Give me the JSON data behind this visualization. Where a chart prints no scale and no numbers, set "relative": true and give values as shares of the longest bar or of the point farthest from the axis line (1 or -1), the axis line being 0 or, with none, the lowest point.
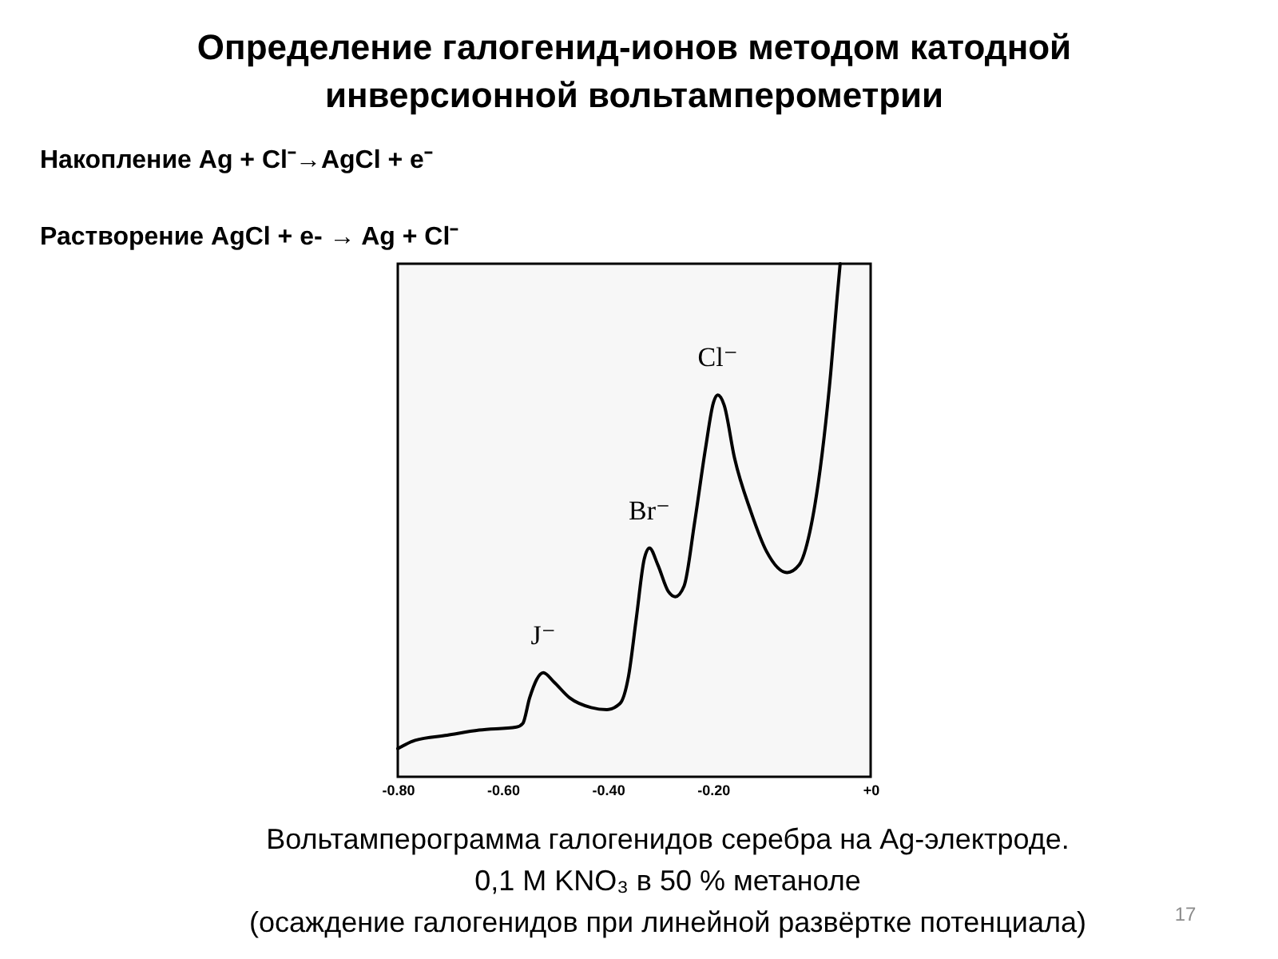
{
  "chart_data": {
    "type": "line",
    "title": "Определение галогенид-ионов методом катодной\nинверсионной вольтамперометрии",
    "x": [
      -0.8,
      -0.767,
      -0.706,
      -0.645,
      -0.574,
      -0.562,
      -0.549,
      -0.523,
      -0.503,
      -0.473,
      -0.432,
      -0.402,
      -0.377,
      -0.361,
      -0.346,
      -0.331,
      -0.321,
      -0.305,
      -0.285,
      -0.272,
      -0.255,
      -0.235,
      -0.214,
      -0.199,
      -0.191,
      -0.179,
      -0.159,
      -0.128,
      -0.098,
      -0.059,
      -0.036,
      -0.016,
      0.004,
      0.024,
      0.036,
      0.042
    ],
    "series": [
      {
        "color": "#000000",
        "values": [
          0.055,
          0.071,
          0.081,
          0.091,
          0.097,
          0.104,
          0.154,
          0.203,
          0.185,
          0.154,
          0.135,
          0.131,
          0.143,
          0.195,
          0.309,
          0.424,
          0.446,
          0.413,
          0.361,
          0.351,
          0.372,
          0.496,
          0.642,
          0.73,
          0.744,
          0.725,
          0.621,
          0.517,
          0.439,
          0.398,
          0.413,
          0.476,
          0.6,
          0.787,
          0.932,
          1.0
        ]
      }
    ],
    "relative": true,
    "xlim": [
      -0.8,
      0.1
    ],
    "xticks": [
      {
        "value": -0.8,
        "label": "-0.80"
      },
      {
        "value": -0.6,
        "label": "-0.60"
      },
      {
        "value": -0.4,
        "label": "-0.40"
      },
      {
        "value": -0.2,
        "label": "-0.20"
      },
      {
        "value": 0.1,
        "label": "+0"
      }
    ],
    "line_style": "solid",
    "annotations": [
      "Накопление  Ag + Cl⁻→AgCl + e⁻",
      "Растворение AgCl + e- → Ag + Cl⁻",
      "Вольтамперограмма галогенидов серебра на Ag-электроде.\n0,1 M KNO₃  в 50 % метаноле\n(осаждение галогенидов при линейной развёртке потенциала)",
      "17",
      {
        "text": "J⁻",
        "x": -0.523,
        "y": 0.203
      },
      {
        "text": "Br⁻",
        "x": -0.321,
        "y": 0.446
      },
      {
        "text": "Cl⁻",
        "x": -0.191,
        "y": 0.744
      }
    ]
  }
}
